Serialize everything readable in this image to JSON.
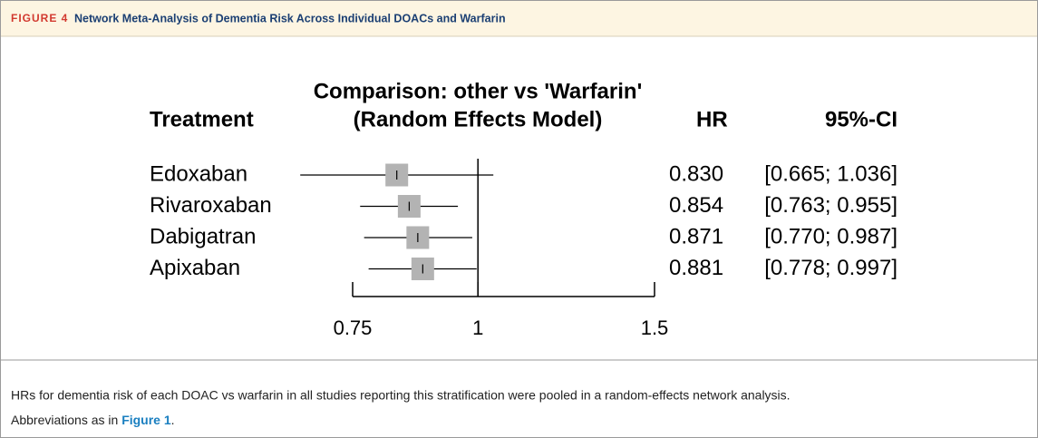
{
  "header": {
    "label": "FIGURE 4",
    "title": "Network Meta-Analysis of Dementia Risk Across Individual DOACs and Warfarin"
  },
  "chart_data": {
    "type": "forest",
    "title": "Comparison: other vs 'Warfarin'",
    "subtitle": "(Random Effects Model)",
    "columns": {
      "treatment": "Treatment",
      "hr": "HR",
      "ci": "95%-CI"
    },
    "categories": [
      "Edoxaban",
      "Rivaroxaban",
      "Dabigatran",
      "Apixaban"
    ],
    "values": [
      0.83,
      0.854,
      0.871,
      0.881
    ],
    "value_labels": [
      "0.830",
      "0.854",
      "0.871",
      "0.881"
    ],
    "ci_lower": [
      0.665,
      0.763,
      0.77,
      0.778
    ],
    "ci_upper": [
      1.036,
      0.955,
      0.987,
      0.997
    ],
    "ci_labels": [
      "[0.665; 1.036]",
      "[0.763; 0.955]",
      "[0.770; 0.987]",
      "[0.778; 0.997]"
    ],
    "xlim": [
      0.75,
      1.5
    ],
    "xticks": [
      0.75,
      1,
      1.5
    ],
    "log_x": true,
    "reference": 1,
    "color": "#b3b3b3"
  },
  "caption": {
    "text": "HRs for dementia risk of each DOAC vs warfarin in all studies reporting this stratification were pooled in a random-effects network analysis.",
    "abbrev_prefix": "Abbreviations as in ",
    "abbrev_link": "Figure 1",
    "abbrev_suffix": "."
  }
}
